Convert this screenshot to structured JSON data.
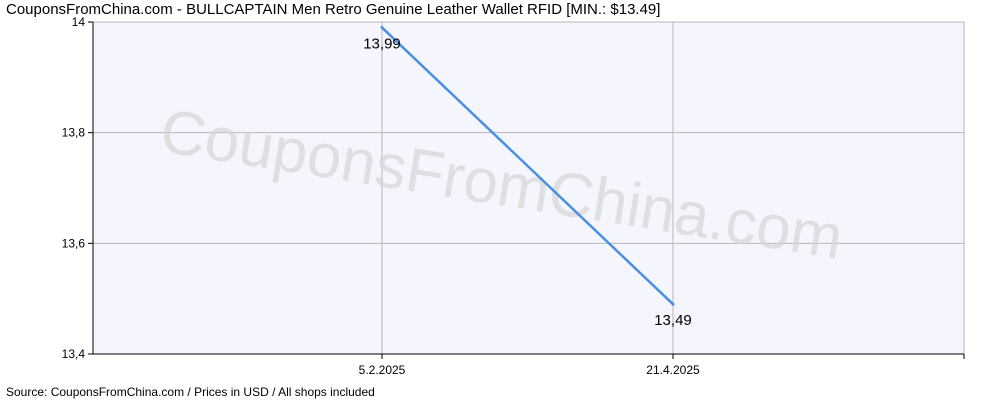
{
  "title": "CouponsFromChina.com - BULLCAPTAIN Men Retro Genuine Leather Wallet RFID [MIN.: $13.49]",
  "footer": "Source: CouponsFromChina.com / Prices in USD / All shops included",
  "watermark": "CouponsFromChina.com",
  "colors": {
    "line": "#4a8fe0",
    "plot_background": "#f4f5fd",
    "grid": "#b8b8b8"
  },
  "chart_data": {
    "type": "line",
    "x": [
      "5.2.2025",
      "21.4.2025"
    ],
    "y": [
      13.99,
      13.49
    ],
    "data_labels": [
      "13,99",
      "13,49"
    ],
    "x_ticks": [
      "5.2.2025",
      "21.4.2025"
    ],
    "y_ticks": [
      13.4,
      13.6,
      13.8,
      14
    ],
    "y_tick_labels": [
      "13,4",
      "13,6",
      "13,8",
      "14"
    ],
    "ylim": [
      13.4,
      14
    ],
    "grid": true,
    "legend": "none"
  }
}
